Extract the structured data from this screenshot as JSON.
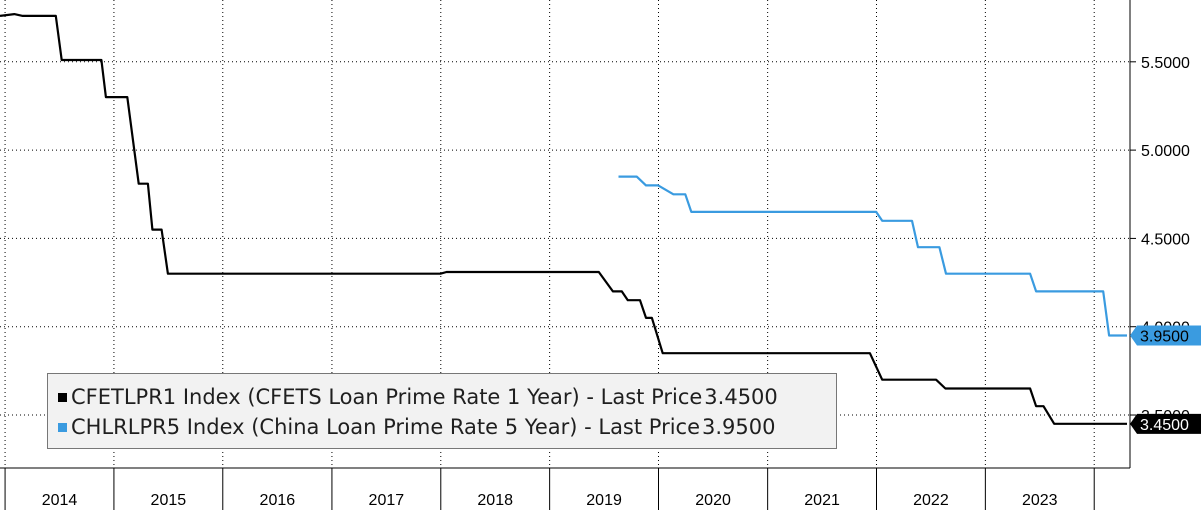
{
  "chart_data": {
    "type": "line",
    "title": "",
    "xlabel": "",
    "ylabel": "",
    "x_range": [
      "2013-12-15",
      "2024-04-30"
    ],
    "ylim": [
      3.2,
      5.85
    ],
    "y_ticks": [
      3.5,
      4.0,
      4.5,
      5.0,
      5.5
    ],
    "y_tick_labels": [
      "3.5000",
      "4.0000",
      "4.5000",
      "5.0000",
      "5.5000"
    ],
    "x_tick_labels": [
      "2014",
      "2015",
      "2016",
      "2017",
      "2018",
      "2019",
      "2020",
      "2021",
      "2022",
      "2023"
    ],
    "grid": true,
    "legend_position": "bottom-left",
    "series": [
      {
        "name": "CFETLPR1 Index (CFETS Loan Prime Rate 1 Year) - Last Price",
        "last_price": "3.4500",
        "color": "#000000",
        "points": [
          [
            "2013-12-15",
            5.76
          ],
          [
            "2014-02-01",
            5.77
          ],
          [
            "2014-03-01",
            5.76
          ],
          [
            "2014-06-20",
            5.76
          ],
          [
            "2014-07-10",
            5.51
          ],
          [
            "2014-11-20",
            5.51
          ],
          [
            "2014-12-05",
            5.3
          ],
          [
            "2015-02-15",
            5.3
          ],
          [
            "2015-03-25",
            4.81
          ],
          [
            "2015-04-25",
            4.81
          ],
          [
            "2015-05-10",
            4.55
          ],
          [
            "2015-06-10",
            4.55
          ],
          [
            "2015-07-01",
            4.3
          ],
          [
            "2017-12-31",
            4.3
          ],
          [
            "2018-01-20",
            4.31
          ],
          [
            "2019-06-15",
            4.31
          ],
          [
            "2019-08-01",
            4.2
          ],
          [
            "2019-08-31",
            4.2
          ],
          [
            "2019-09-20",
            4.15
          ],
          [
            "2019-10-31",
            4.15
          ],
          [
            "2019-11-20",
            4.05
          ],
          [
            "2019-12-10",
            4.05
          ],
          [
            "2020-01-15",
            3.85
          ],
          [
            "2021-12-10",
            3.85
          ],
          [
            "2022-01-20",
            3.7
          ],
          [
            "2022-07-20",
            3.7
          ],
          [
            "2022-08-20",
            3.65
          ],
          [
            "2023-05-31",
            3.65
          ],
          [
            "2023-06-20",
            3.55
          ],
          [
            "2023-07-15",
            3.55
          ],
          [
            "2023-08-20",
            3.45
          ],
          [
            "2024-04-20",
            3.45
          ]
        ]
      },
      {
        "name": "CHLRLPR5 Index (China Loan Prime Rate 5 Year) - Last Price",
        "last_price": "3.9500",
        "color": "#3a9be0",
        "points": [
          [
            "2019-08-20",
            4.85
          ],
          [
            "2019-10-20",
            4.85
          ],
          [
            "2019-11-20",
            4.8
          ],
          [
            "2019-12-31",
            4.8
          ],
          [
            "2020-02-20",
            4.75
          ],
          [
            "2020-03-31",
            4.75
          ],
          [
            "2020-04-20",
            4.65
          ],
          [
            "2021-12-31",
            4.65
          ],
          [
            "2022-01-20",
            4.6
          ],
          [
            "2022-04-30",
            4.6
          ],
          [
            "2022-05-20",
            4.45
          ],
          [
            "2022-07-31",
            4.45
          ],
          [
            "2022-08-22",
            4.3
          ],
          [
            "2023-05-31",
            4.3
          ],
          [
            "2023-06-20",
            4.2
          ],
          [
            "2024-01-31",
            4.2
          ],
          [
            "2024-02-20",
            3.95
          ],
          [
            "2024-04-20",
            3.95
          ]
        ]
      }
    ]
  }
}
